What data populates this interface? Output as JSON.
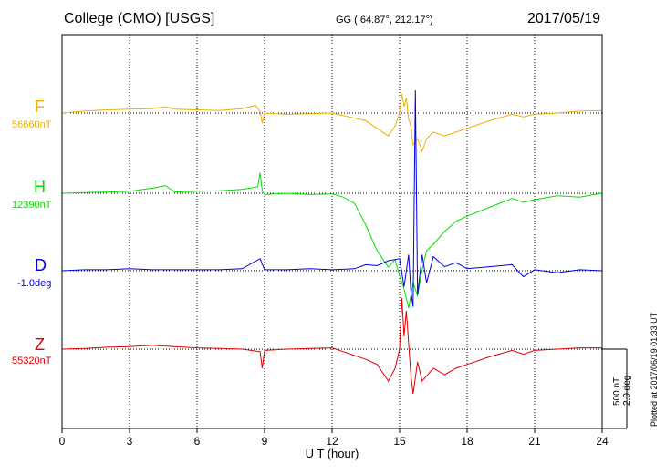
{
  "header": {
    "title": "College (CMO)  [USGS]",
    "coords": "GG ( 64.87°, 212.17°)",
    "date": "2017/05/19"
  },
  "plotted_note": "Plotted at 2017/06/19 01:33 UT",
  "scale_bar": {
    "label_nt": "500 nT",
    "label_deg": "2.0 deg"
  },
  "chart_data": {
    "type": "line",
    "xlabel": "U T (hour)",
    "xlim": [
      0,
      24
    ],
    "xticks": [
      "0",
      "3",
      "6",
      "9",
      "12",
      "15",
      "18",
      "21",
      "24"
    ],
    "grid": true,
    "series": [
      {
        "name": "F",
        "baseline_label": "56660nT",
        "color": "#f0b000",
        "points": [
          [
            0,
            0
          ],
          [
            1,
            15
          ],
          [
            2,
            25
          ],
          [
            3,
            30
          ],
          [
            4,
            35
          ],
          [
            4.6,
            50
          ],
          [
            5,
            30
          ],
          [
            6,
            25
          ],
          [
            7,
            20
          ],
          [
            8,
            35
          ],
          [
            8.6,
            60
          ],
          [
            8.8,
            10
          ],
          [
            8.9,
            -80
          ],
          [
            9,
            0
          ],
          [
            10,
            -10
          ],
          [
            11,
            -5
          ],
          [
            12,
            0
          ],
          [
            12.5,
            -20
          ],
          [
            13,
            -40
          ],
          [
            13.5,
            -60
          ],
          [
            14,
            -120
          ],
          [
            14.5,
            -180
          ],
          [
            14.8,
            -100
          ],
          [
            15,
            0
          ],
          [
            15.1,
            150
          ],
          [
            15.2,
            50
          ],
          [
            15.3,
            120
          ],
          [
            15.4,
            -50
          ],
          [
            15.5,
            -100
          ],
          [
            15.6,
            -250
          ],
          [
            15.8,
            -200
          ],
          [
            16,
            -300
          ],
          [
            16.2,
            -200
          ],
          [
            16.5,
            -150
          ],
          [
            17,
            -180
          ],
          [
            17.5,
            -150
          ],
          [
            18,
            -120
          ],
          [
            19,
            -60
          ],
          [
            20,
            -10
          ],
          [
            20.5,
            -30
          ],
          [
            21,
            -10
          ],
          [
            22,
            0
          ],
          [
            23,
            15
          ],
          [
            24,
            20
          ]
        ]
      },
      {
        "name": "H",
        "baseline_label": "12390nT",
        "color": "#00e000",
        "points": [
          [
            0,
            0
          ],
          [
            1,
            5
          ],
          [
            2,
            10
          ],
          [
            3,
            15
          ],
          [
            4,
            40
          ],
          [
            4.6,
            60
          ],
          [
            5,
            10
          ],
          [
            6,
            15
          ],
          [
            7,
            20
          ],
          [
            8,
            30
          ],
          [
            8.7,
            50
          ],
          [
            8.8,
            160
          ],
          [
            8.9,
            20
          ],
          [
            9,
            -10
          ],
          [
            10,
            0
          ],
          [
            11,
            -10
          ],
          [
            12,
            -5
          ],
          [
            12.5,
            -30
          ],
          [
            13,
            -80
          ],
          [
            13.5,
            -250
          ],
          [
            14,
            -450
          ],
          [
            14.5,
            -580
          ],
          [
            14.8,
            -520
          ],
          [
            15,
            -650
          ],
          [
            15.2,
            -750
          ],
          [
            15.4,
            -900
          ],
          [
            15.6,
            -700
          ],
          [
            15.8,
            -800
          ],
          [
            16,
            -600
          ],
          [
            16.2,
            -450
          ],
          [
            16.5,
            -400
          ],
          [
            17,
            -300
          ],
          [
            17.5,
            -220
          ],
          [
            18,
            -180
          ],
          [
            19,
            -110
          ],
          [
            20,
            -40
          ],
          [
            20.5,
            -70
          ],
          [
            21,
            -50
          ],
          [
            22,
            -20
          ],
          [
            23,
            -30
          ],
          [
            24,
            0
          ]
        ]
      },
      {
        "name": "D",
        "baseline_label": "-1.0deg",
        "color": "#0000e0",
        "points": [
          [
            0,
            0
          ],
          [
            1,
            0.05
          ],
          [
            2,
            0.05
          ],
          [
            3,
            0.1
          ],
          [
            4,
            0.05
          ],
          [
            5,
            0.05
          ],
          [
            6,
            0.05
          ],
          [
            7,
            0.05
          ],
          [
            8,
            0.1
          ],
          [
            8.8,
            0.6
          ],
          [
            9,
            0.05
          ],
          [
            10,
            0.05
          ],
          [
            11,
            0.1
          ],
          [
            12,
            0.05
          ],
          [
            13,
            0.1
          ],
          [
            13.5,
            0.3
          ],
          [
            14,
            0.25
          ],
          [
            14.5,
            0.5
          ],
          [
            15,
            0.6
          ],
          [
            15.2,
            -0.8
          ],
          [
            15.4,
            0.8
          ],
          [
            15.5,
            -1.0
          ],
          [
            15.6,
            -1.8
          ],
          [
            15.7,
            9.0
          ],
          [
            15.8,
            -1.2
          ],
          [
            16,
            0.8
          ],
          [
            16.2,
            -0.6
          ],
          [
            16.5,
            0.7
          ],
          [
            17,
            0.2
          ],
          [
            17.5,
            0.4
          ],
          [
            18,
            0.1
          ],
          [
            19,
            0.2
          ],
          [
            20,
            0.3
          ],
          [
            20.5,
            -0.3
          ],
          [
            21,
            0.05
          ],
          [
            22,
            -0.1
          ],
          [
            23,
            0.05
          ],
          [
            24,
            0
          ]
        ]
      },
      {
        "name": "Z",
        "baseline_label": "55320nT",
        "color": "#e00000",
        "points": [
          [
            0,
            0
          ],
          [
            1,
            5
          ],
          [
            2,
            15
          ],
          [
            3,
            20
          ],
          [
            4,
            30
          ],
          [
            5,
            20
          ],
          [
            6,
            10
          ],
          [
            7,
            5
          ],
          [
            8,
            0
          ],
          [
            8.8,
            -20
          ],
          [
            8.9,
            -150
          ],
          [
            9,
            -10
          ],
          [
            10,
            0
          ],
          [
            11,
            5
          ],
          [
            12,
            10
          ],
          [
            12.5,
            -20
          ],
          [
            13,
            -50
          ],
          [
            13.5,
            -80
          ],
          [
            14,
            -120
          ],
          [
            14.5,
            -250
          ],
          [
            14.8,
            -150
          ],
          [
            15,
            0
          ],
          [
            15.1,
            400
          ],
          [
            15.2,
            100
          ],
          [
            15.3,
            300
          ],
          [
            15.5,
            -200
          ],
          [
            15.6,
            -350
          ],
          [
            15.8,
            -100
          ],
          [
            16,
            -250
          ],
          [
            16.5,
            -150
          ],
          [
            17,
            -200
          ],
          [
            17.5,
            -150
          ],
          [
            18,
            -120
          ],
          [
            19,
            -60
          ],
          [
            20,
            -10
          ],
          [
            20.5,
            -40
          ],
          [
            21,
            -10
          ],
          [
            22,
            0
          ],
          [
            23,
            10
          ],
          [
            24,
            10
          ]
        ]
      }
    ]
  }
}
